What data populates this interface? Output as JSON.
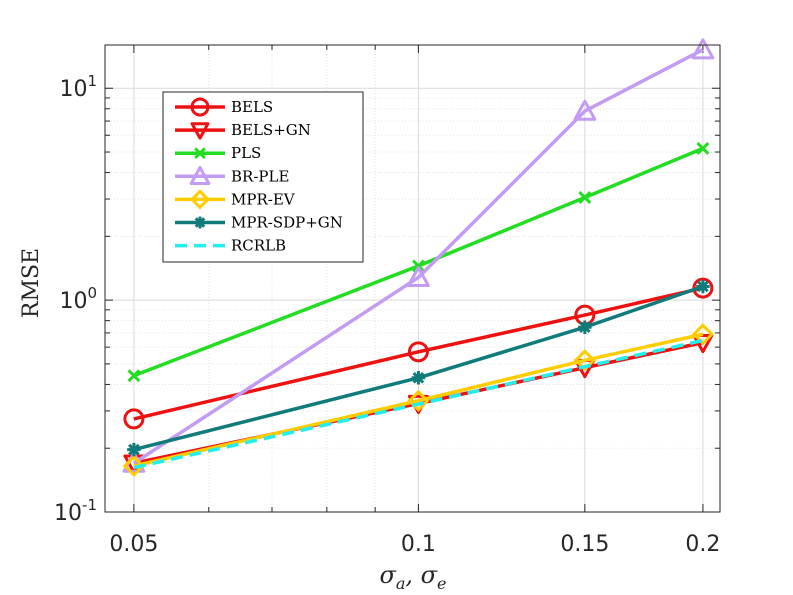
{
  "chart_data": {
    "type": "line",
    "title": "",
    "xlabel": "σa, σe",
    "xlabel_main": "σ",
    "xlabel_sub1": "a",
    "xlabel_sep": ", σ",
    "xlabel_sub2": "e",
    "ylabel": "RMSE",
    "x_scale": "log",
    "y_scale": "log",
    "xlim": [
      0.0466,
      0.2085
    ],
    "ylim": [
      0.1,
      16
    ],
    "grid": true,
    "legend_position": "top-left",
    "x": [
      0.05,
      0.1,
      0.15,
      0.2
    ],
    "x_ticks": [
      {
        "value": 0.05,
        "label": "0.05"
      },
      {
        "value": 0.1,
        "label": "0.1"
      },
      {
        "value": 0.15,
        "label": "0.15"
      },
      {
        "value": 0.2,
        "label": "0.2"
      }
    ],
    "y_ticks": [
      {
        "value": 0.1,
        "base": "10",
        "exp": "-1"
      },
      {
        "value": 1,
        "base": "10",
        "exp": "0"
      },
      {
        "value": 10,
        "base": "10",
        "exp": "1"
      }
    ],
    "series": [
      {
        "name": "BELS",
        "color": "#ee1111",
        "marker": "circle",
        "dash": "",
        "values": [
          0.275,
          0.57,
          0.85,
          1.14
        ]
      },
      {
        "name": "BELS+GN",
        "color": "#ee1111",
        "marker": "triangle-down",
        "dash": "",
        "values": [
          0.17,
          0.325,
          0.48,
          0.63
        ]
      },
      {
        "name": "PLS",
        "color": "#22dd22",
        "marker": "x",
        "dash": "",
        "values": [
          0.44,
          1.45,
          3.05,
          5.2
        ]
      },
      {
        "name": "BR-PLE",
        "color": "#c39bf2",
        "marker": "triangle-up",
        "dash": "",
        "values": [
          0.17,
          1.28,
          7.8,
          15.2
        ]
      },
      {
        "name": "MPR-EV",
        "color": "#ffcc00",
        "marker": "diamond",
        "dash": "",
        "values": [
          0.165,
          0.335,
          0.52,
          0.69
        ]
      },
      {
        "name": "MPR-SDP+GN",
        "color": "#117b7b",
        "marker": "asterisk",
        "dash": "",
        "values": [
          0.197,
          0.43,
          0.745,
          1.16
        ]
      },
      {
        "name": "RCRLB",
        "color": "#22eeee",
        "marker": "none",
        "dash": "12 7",
        "values": [
          0.162,
          0.323,
          0.485,
          0.645
        ]
      }
    ]
  }
}
